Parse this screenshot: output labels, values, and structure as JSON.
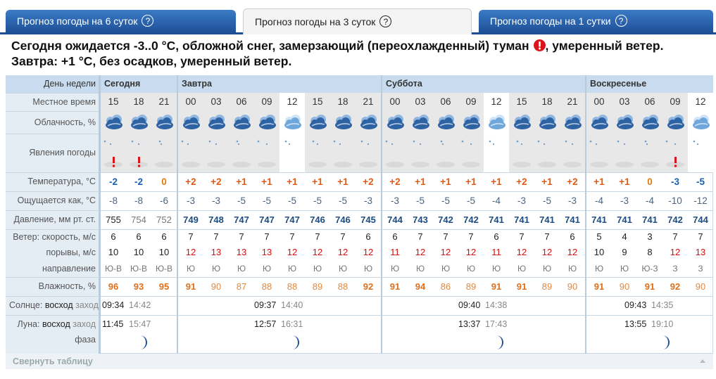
{
  "tabs": [
    "Прогноз погоды на 6 суток",
    "Прогноз погоды на 3 суток",
    "Прогноз погоды на 1 сутки"
  ],
  "help_icon": "?",
  "headline": {
    "today": "Сегодня ожидается -3..0 °C, обложной снег, замерзающий (переохлажденный) туман",
    "today_end": ", умеренный ветер.",
    "tomorrow": "Завтра: +1 °C, без осадков, умеренный ветер."
  },
  "table": {
    "labels": {
      "day": "День недели",
      "time": "Местное время",
      "cloud": "Облачность, %",
      "phen": "Явления погоды",
      "temp": "Температура, °C",
      "feels": "Ощущается как, °C",
      "pressure": "Давление, мм рт. ст.",
      "speed": "Ветер: скорость, м/с",
      "gusts": "порывы, м/с",
      "direction": "направление",
      "humidity": "Влажность, %",
      "sun": "Солнце:",
      "sun_rise": "восход",
      "sun_set": "заход",
      "moon": "Луна:",
      "moon_rise": "восход",
      "moon_set": "заход",
      "phase": "фаза"
    },
    "days": [
      {
        "name": "Сегодня",
        "times": [
          "15",
          "18",
          "21"
        ],
        "temp": [
          "-2",
          "-2",
          "0"
        ],
        "feels": [
          "-8",
          "-8",
          "-6"
        ],
        "pressure": [
          755,
          754,
          752
        ],
        "speed": [
          6,
          6,
          6
        ],
        "gusts": [
          10,
          10,
          10
        ],
        "direction": [
          "Ю-В",
          "Ю-В",
          "Ю-В"
        ],
        "humidity": [
          96,
          93,
          95
        ],
        "sunrise": "09:34",
        "sunset": "14:42",
        "moonrise": "11:45",
        "moonset": "15:47"
      },
      {
        "name": "Завтра",
        "times": [
          "00",
          "03",
          "06",
          "09",
          "12",
          "15",
          "18",
          "21"
        ],
        "temp": [
          "+2",
          "+2",
          "+1",
          "+1",
          "+1",
          "+1",
          "+1",
          "+2"
        ],
        "feels": [
          "-3",
          "-3",
          "-5",
          "-5",
          "-5",
          "-5",
          "-5",
          "-3"
        ],
        "pressure": [
          749,
          748,
          747,
          747,
          747,
          746,
          746,
          745
        ],
        "speed": [
          7,
          7,
          7,
          7,
          7,
          7,
          7,
          6
        ],
        "gusts": [
          12,
          13,
          13,
          13,
          12,
          12,
          12,
          12
        ],
        "direction": [
          "Ю",
          "Ю",
          "Ю",
          "Ю",
          "Ю",
          "Ю",
          "Ю",
          "Ю"
        ],
        "humidity": [
          91,
          90,
          87,
          88,
          88,
          89,
          88,
          92
        ],
        "sunrise": "09:37",
        "sunset": "14:40",
        "moonrise": "12:57",
        "moonset": "16:31"
      },
      {
        "name": "Суббота",
        "times": [
          "00",
          "03",
          "06",
          "09",
          "12",
          "15",
          "18",
          "21"
        ],
        "temp": [
          "+2",
          "+1",
          "+1",
          "+1",
          "+1",
          "+2",
          "+1",
          "+2"
        ],
        "feels": [
          "-3",
          "-5",
          "-5",
          "-5",
          "-4",
          "-3",
          "-5",
          "-3"
        ],
        "pressure": [
          744,
          743,
          742,
          742,
          741,
          741,
          741,
          741
        ],
        "speed": [
          6,
          7,
          7,
          7,
          6,
          7,
          7,
          6
        ],
        "gusts": [
          11,
          12,
          12,
          12,
          11,
          12,
          12,
          12
        ],
        "direction": [
          "Ю",
          "Ю",
          "Ю",
          "Ю",
          "Ю",
          "Ю",
          "Ю",
          "Ю"
        ],
        "humidity": [
          91,
          94,
          86,
          89,
          91,
          91,
          89,
          90
        ],
        "sunrise": "09:40",
        "sunset": "14:38",
        "moonrise": "13:37",
        "moonset": "17:43"
      },
      {
        "name": "Воскресенье",
        "times": [
          "00",
          "03",
          "06",
          "09",
          "12"
        ],
        "temp": [
          "+1",
          "+1",
          "0",
          "-3",
          "-5"
        ],
        "feels": [
          "-4",
          "-3",
          "-4",
          "-10",
          "-12"
        ],
        "pressure": [
          741,
          741,
          741,
          742,
          744
        ],
        "speed": [
          5,
          4,
          3,
          7,
          7
        ],
        "gusts": [
          10,
          9,
          8,
          12,
          13
        ],
        "direction": [
          "Ю",
          "Ю",
          "Ю-З",
          "З",
          "З"
        ],
        "humidity": [
          91,
          90,
          91,
          92,
          90
        ],
        "sunrise": "09:43",
        "sunset": "14:35",
        "moonrise": "13:55",
        "moonset": "19:10"
      }
    ],
    "collapse": "Свернуть таблицу"
  }
}
